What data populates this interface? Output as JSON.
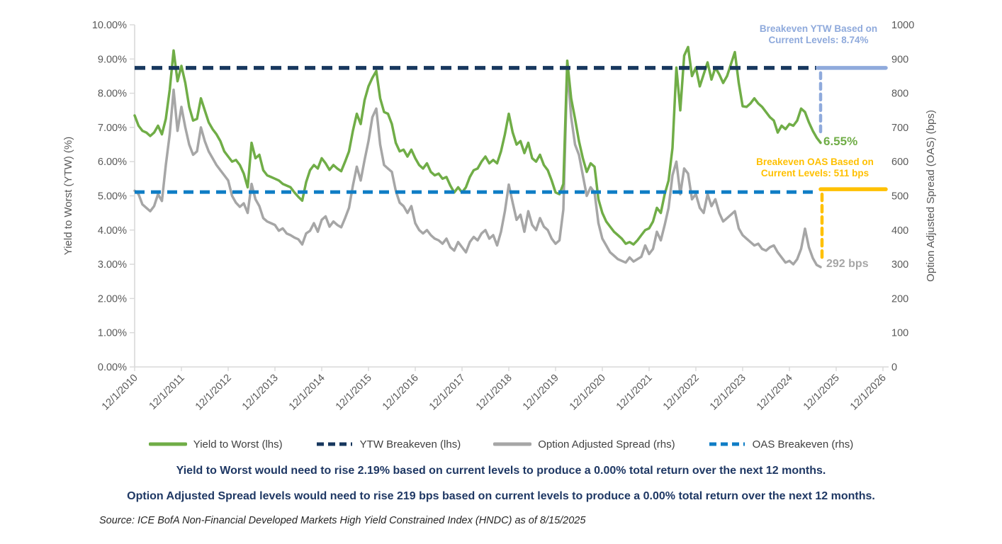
{
  "chart_data": {
    "type": "line",
    "grid": "off",
    "background": "#ffffff",
    "x_tick_labels": [
      "12/1/2010",
      "12/1/2011",
      "12/1/2012",
      "12/1/2013",
      "12/1/2014",
      "12/1/2015",
      "12/1/2016",
      "12/1/2017",
      "12/1/2018",
      "12/1/2019",
      "12/1/2020",
      "12/1/2021",
      "12/1/2022",
      "12/1/2023",
      "12/1/2024",
      "12/1/2025",
      "12/1/2026"
    ],
    "left_axis": {
      "label": "Yield to Worst (YTW) (%)",
      "min": 0,
      "max": 10,
      "ticks": [
        "0.00%",
        "1.00%",
        "2.00%",
        "3.00%",
        "4.00%",
        "5.00%",
        "6.00%",
        "7.00%",
        "8.00%",
        "9.00%",
        "10.00%"
      ]
    },
    "right_axis": {
      "label": "Option Adjusted Spread (OAS) (bps)",
      "min": 0,
      "max": 1000,
      "ticks": [
        "0",
        "100",
        "200",
        "300",
        "400",
        "500",
        "600",
        "700",
        "800",
        "900",
        "1000"
      ]
    },
    "start_month": "2010-12",
    "frequency": "monthly",
    "series": [
      {
        "name": "Yield to Worst (lhs)",
        "axis": "left",
        "color": "#70AD47",
        "style": "solid",
        "values": [
          7.35,
          7.05,
          6.9,
          6.85,
          6.75,
          6.85,
          7.05,
          6.8,
          7.25,
          8.1,
          9.25,
          8.35,
          8.8,
          8.3,
          7.6,
          7.2,
          7.25,
          7.85,
          7.5,
          7.15,
          6.95,
          6.8,
          6.6,
          6.3,
          6.15,
          6.0,
          6.05,
          5.9,
          5.65,
          5.25,
          6.55,
          6.1,
          6.2,
          5.75,
          5.6,
          5.55,
          5.5,
          5.45,
          5.35,
          5.3,
          5.25,
          5.1,
          4.97,
          4.86,
          5.4,
          5.75,
          5.9,
          5.8,
          6.1,
          5.95,
          5.76,
          5.9,
          5.8,
          5.72,
          6.0,
          6.3,
          6.9,
          7.4,
          7.1,
          7.8,
          8.2,
          8.45,
          8.65,
          7.85,
          7.45,
          7.4,
          7.1,
          6.55,
          6.3,
          6.35,
          6.15,
          6.35,
          6.1,
          5.9,
          5.8,
          5.95,
          5.7,
          5.6,
          5.65,
          5.5,
          5.55,
          5.3,
          5.1,
          5.25,
          5.1,
          5.25,
          5.55,
          5.75,
          5.8,
          6.0,
          6.15,
          5.95,
          6.05,
          5.95,
          6.3,
          6.8,
          7.4,
          6.85,
          6.5,
          6.6,
          6.25,
          6.55,
          6.1,
          6.0,
          6.2,
          5.9,
          5.75,
          5.45,
          5.1,
          5.05,
          5.35,
          8.95,
          7.85,
          7.25,
          6.6,
          6.1,
          5.7,
          5.95,
          5.85,
          4.9,
          4.5,
          4.25,
          4.1,
          3.95,
          3.85,
          3.75,
          3.6,
          3.65,
          3.58,
          3.7,
          3.85,
          4.0,
          4.05,
          4.25,
          4.65,
          4.5,
          5.05,
          5.45,
          6.4,
          8.75,
          7.5,
          9.1,
          9.35,
          8.5,
          8.75,
          8.2,
          8.55,
          8.9,
          8.4,
          8.75,
          8.55,
          8.3,
          8.5,
          8.85,
          9.2,
          8.3,
          7.62,
          7.6,
          7.7,
          7.85,
          7.7,
          7.6,
          7.45,
          7.3,
          7.2,
          6.85,
          7.05,
          6.95,
          7.1,
          7.05,
          7.2,
          7.55,
          7.45,
          7.15,
          6.9,
          6.7,
          6.55
        ]
      },
      {
        "name": "YTW Breakeven (lhs)",
        "axis": "left",
        "color": "#17375E",
        "style": "dashed",
        "constant": 8.74
      },
      {
        "name": "Option Adjusted Spread (rhs)",
        "axis": "right",
        "color": "#A6A6A6",
        "style": "solid",
        "values": [
          515,
          505,
          475,
          465,
          455,
          470,
          505,
          485,
          590,
          680,
          810,
          690,
          760,
          700,
          650,
          620,
          630,
          700,
          660,
          630,
          610,
          590,
          575,
          560,
          545,
          500,
          480,
          468,
          478,
          450,
          535,
          490,
          470,
          435,
          425,
          420,
          415,
          398,
          405,
          390,
          385,
          378,
          373,
          358,
          390,
          398,
          420,
          395,
          430,
          440,
          410,
          425,
          415,
          408,
          435,
          465,
          530,
          585,
          545,
          605,
          660,
          730,
          755,
          650,
          590,
          580,
          570,
          515,
          480,
          470,
          450,
          470,
          420,
          400,
          390,
          400,
          385,
          375,
          370,
          360,
          375,
          350,
          340,
          365,
          350,
          335,
          365,
          380,
          370,
          390,
          400,
          375,
          385,
          355,
          395,
          455,
          533,
          480,
          430,
          445,
          395,
          455,
          415,
          400,
          435,
          410,
          400,
          375,
          360,
          370,
          460,
          875,
          730,
          650,
          620,
          560,
          500,
          525,
          510,
          420,
          375,
          355,
          335,
          325,
          315,
          310,
          305,
          320,
          308,
          315,
          322,
          355,
          330,
          345,
          395,
          370,
          415,
          465,
          560,
          600,
          505,
          580,
          565,
          490,
          505,
          465,
          450,
          505,
          470,
          490,
          450,
          425,
          435,
          445,
          455,
          405,
          385,
          375,
          365,
          355,
          360,
          345,
          340,
          350,
          355,
          335,
          320,
          305,
          310,
          300,
          315,
          345,
          404,
          350,
          318,
          298,
          292
        ]
      },
      {
        "name": "OAS Breakeven (rhs)",
        "axis": "right",
        "color": "#0F7DC5",
        "style": "dashed",
        "constant": 511
      }
    ],
    "extension_colors": {
      "ytw": "#8FAADC",
      "oas": "#FFC000"
    }
  },
  "annotations": {
    "breakeven_ytw": {
      "line1": "Breakeven YTW Based on",
      "line2": "Current Levels: 8.74%",
      "color": "#8FAADC"
    },
    "breakeven_oas": {
      "line1": "Breakeven OAS Based on",
      "line2": "Current Levels: 511 bps",
      "color": "#FFC000"
    },
    "ytw_current_label": "6.55%",
    "oas_current_label": "292 bps"
  },
  "captions": {
    "ytw": "Yield to Worst would need to rise 2.19% based on current levels to produce a 0.00% total return over the next 12 months.",
    "oas": "Option Adjusted Spread levels would need to rise 219 bps based on current levels to produce a 0.00% total return over the next 12 months."
  },
  "source": "Source: ICE BofA Non-Financial Developed Markets High Yield Constrained Index (HNDC) as of 8/15/2025"
}
